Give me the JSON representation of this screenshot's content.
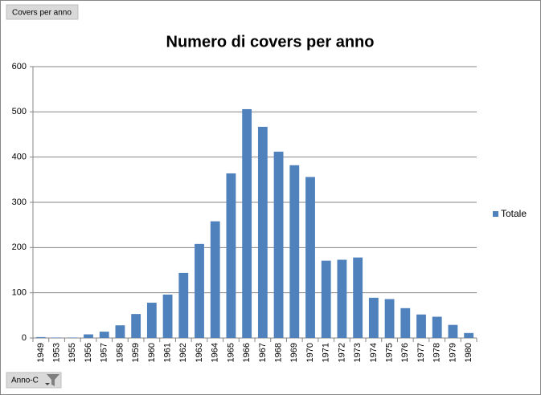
{
  "pivot_buttons": {
    "report": "Covers per anno",
    "field": "Anno-C"
  },
  "chart_data": {
    "type": "bar",
    "title": "Numero di covers per anno",
    "categories": [
      "1949",
      "1953",
      "1955",
      "1956",
      "1957",
      "1958",
      "1959",
      "1960",
      "1961",
      "1962",
      "1963",
      "1964",
      "1965",
      "1966",
      "1967",
      "1968",
      "1969",
      "1970",
      "1971",
      "1972",
      "1973",
      "1974",
      "1975",
      "1976",
      "1977",
      "1978",
      "1979",
      "1980"
    ],
    "series": [
      {
        "name": "Totale",
        "color": "#4f81bd",
        "values": [
          2,
          1,
          1,
          8,
          14,
          28,
          53,
          78,
          96,
          144,
          208,
          258,
          364,
          506,
          467,
          412,
          382,
          356,
          171,
          173,
          178,
          89,
          86,
          66,
          52,
          47,
          29,
          11
        ]
      }
    ],
    "ylim": [
      0,
      600
    ],
    "yticks": [
      0,
      100,
      200,
      300,
      400,
      500,
      600
    ],
    "grid": true,
    "legend": "right"
  }
}
